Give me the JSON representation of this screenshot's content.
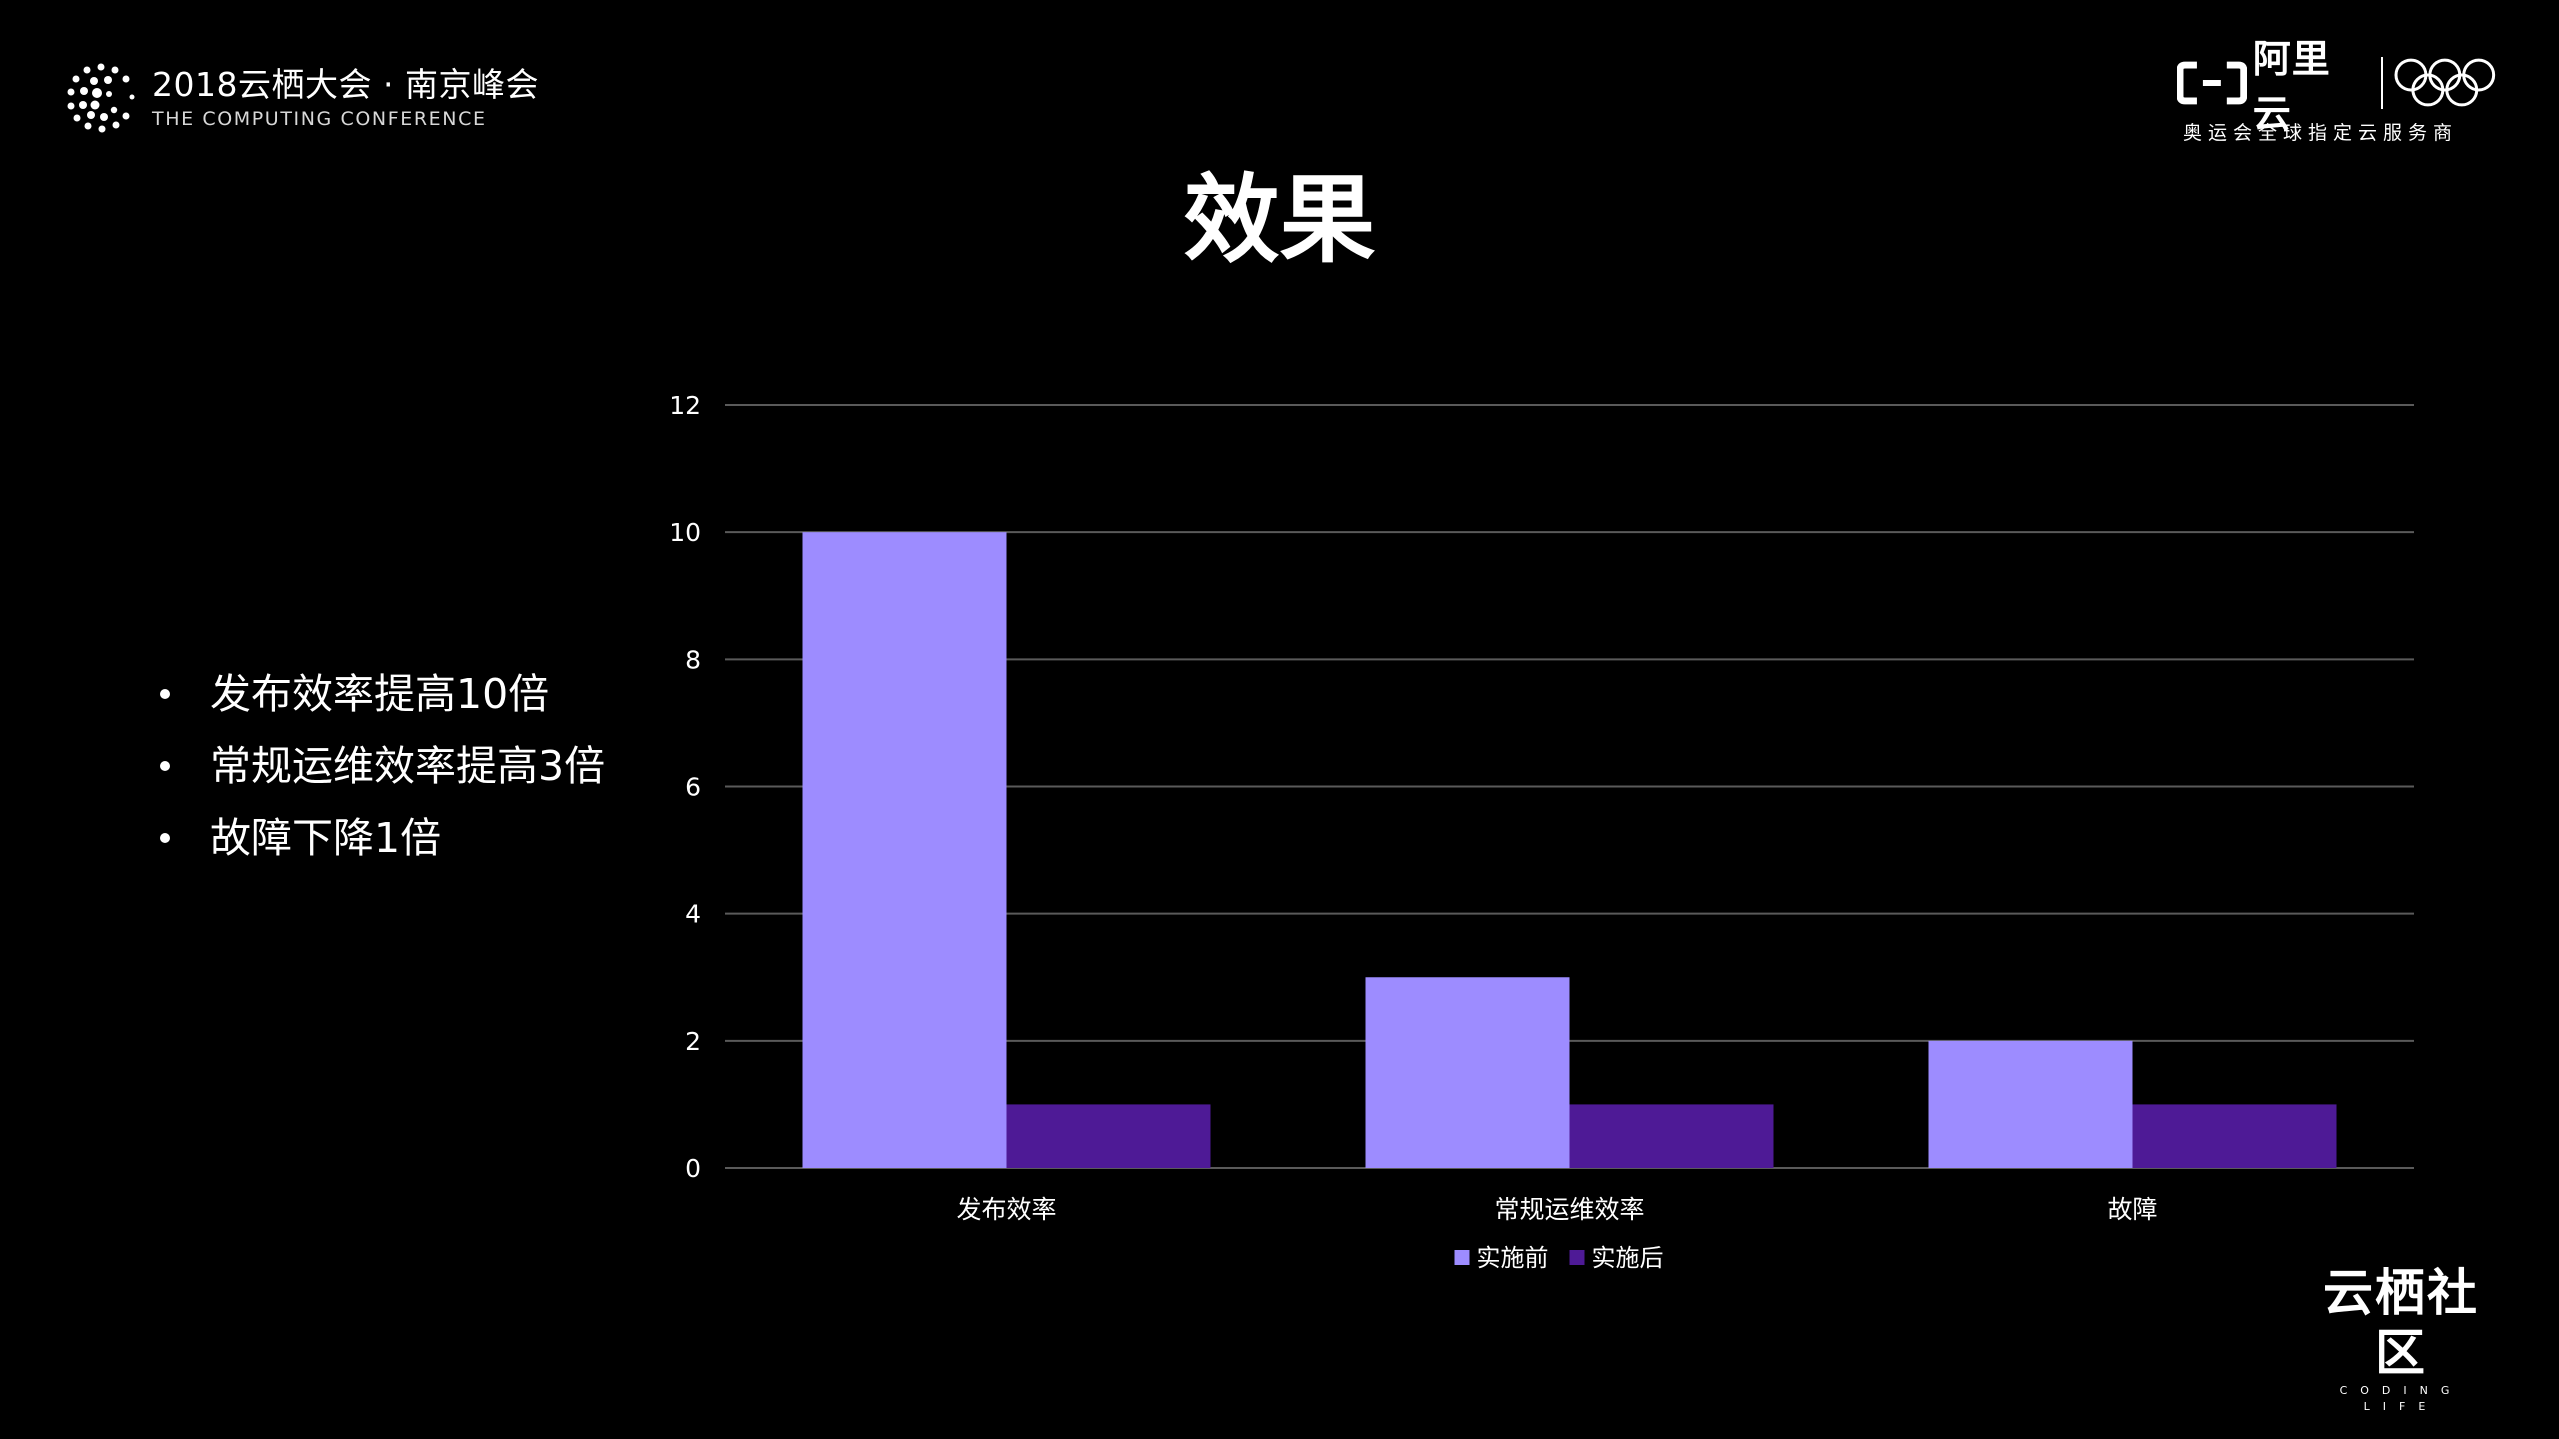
{
  "header": {
    "conference_title": "2018云栖大会 · 南京峰会",
    "conference_subtitle": "THE COMPUTING CONFERENCE",
    "brand_name": "阿里云",
    "brand_tagline": "奥运会全球指定云服务商"
  },
  "slide": {
    "title": "效果",
    "bullets": [
      "发布效率提高10倍",
      "常规运维效率提高3倍",
      "故障下降1倍"
    ]
  },
  "footer": {
    "community_name": "云栖社区",
    "community_sub": "CODING LIFE"
  },
  "colors": {
    "background": "#000000",
    "series_before": "#9D8CFF",
    "series_after": "#4E1A96",
    "gridline": "#5a5a5a"
  },
  "chart_data": {
    "type": "bar",
    "title": "",
    "xlabel": "",
    "ylabel": "",
    "categories": [
      "发布效率",
      "常规运维效率",
      "故障"
    ],
    "series": [
      {
        "name": "实施前",
        "values": [
          10,
          3,
          2
        ]
      },
      {
        "name": "实施后",
        "values": [
          1,
          1,
          1
        ]
      }
    ],
    "ylim": [
      0,
      12
    ],
    "yticks": [
      0,
      2,
      4,
      6,
      8,
      10,
      12
    ],
    "grid": true,
    "legend": "bottom"
  }
}
